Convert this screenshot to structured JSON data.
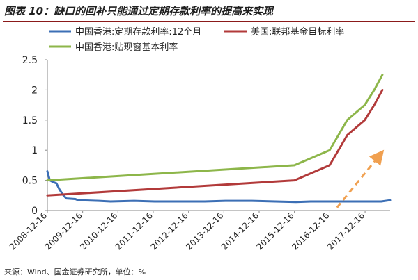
{
  "header": {
    "title": "图表 10：缺口的回补只能通过定期存款利率的提高来实现"
  },
  "footer": {
    "source": "来源：Wind、国金证券研究所，单位：%"
  },
  "chart_data": {
    "type": "line",
    "title": "图表 10：缺口的回补只能通过定期存款利率的提高来实现",
    "xlabel": "",
    "ylabel": "",
    "ylim": [
      0,
      2.5
    ],
    "yticks": [
      "0",
      "0.5",
      "1",
      "1.5",
      "2",
      "2.5"
    ],
    "xticks": [
      "2008-12-16",
      "2009-12-16",
      "2010-12-16",
      "2011-12-16",
      "2012-12-16",
      "2013-12-16",
      "2014-12-16",
      "2015-12-16",
      "2016-12-16",
      "2017-12-16"
    ],
    "xlim": [
      "2008-12-16",
      "2018-09-01"
    ],
    "grid": false,
    "legend_position": "top-left",
    "series": [
      {
        "name": "中国香港:定期存款利率:12个月",
        "color": "#3c6fb5",
        "points": [
          [
            "2008-12-16",
            0.65
          ],
          [
            "2009-01-10",
            0.5
          ],
          [
            "2009-02-15",
            0.47
          ],
          [
            "2009-03-20",
            0.45
          ],
          [
            "2009-04-20",
            0.35
          ],
          [
            "2009-06-01",
            0.25
          ],
          [
            "2009-07-01",
            0.2
          ],
          [
            "2009-10-01",
            0.19
          ],
          [
            "2009-11-01",
            0.17
          ],
          [
            "2010-06-01",
            0.16
          ],
          [
            "2010-10-01",
            0.15
          ],
          [
            "2011-06-01",
            0.16
          ],
          [
            "2012-01-01",
            0.15
          ],
          [
            "2012-10-01",
            0.15
          ],
          [
            "2013-06-01",
            0.15
          ],
          [
            "2014-01-01",
            0.16
          ],
          [
            "2014-10-01",
            0.16
          ],
          [
            "2015-06-01",
            0.15
          ],
          [
            "2016-01-01",
            0.14
          ],
          [
            "2016-06-01",
            0.15
          ],
          [
            "2017-01-01",
            0.15
          ],
          [
            "2017-12-16",
            0.15
          ],
          [
            "2018-06-01",
            0.15
          ],
          [
            "2018-09-01",
            0.17
          ]
        ]
      },
      {
        "name": "美国:联邦基金目标利率",
        "color": "#b23a3a",
        "points": [
          [
            "2008-12-16",
            0.25
          ],
          [
            "2015-12-16",
            0.5
          ],
          [
            "2016-12-14",
            0.75
          ],
          [
            "2017-03-15",
            1.0
          ],
          [
            "2017-06-14",
            1.25
          ],
          [
            "2017-12-13",
            1.5
          ],
          [
            "2018-03-21",
            1.75
          ],
          [
            "2018-06-13",
            2.0
          ]
        ]
      },
      {
        "name": "中国香港:贴现窗基本利率",
        "color": "#8db64a",
        "points": [
          [
            "2008-12-16",
            0.5
          ],
          [
            "2015-12-16",
            0.75
          ],
          [
            "2016-12-14",
            1.0
          ],
          [
            "2017-03-15",
            1.25
          ],
          [
            "2017-06-14",
            1.5
          ],
          [
            "2017-12-13",
            1.75
          ],
          [
            "2018-03-21",
            2.0
          ],
          [
            "2018-06-13",
            2.25
          ]
        ]
      }
    ],
    "annotations": [
      {
        "type": "arrow",
        "style": "dashed",
        "color": "#f0a050",
        "from": [
          "2017-03-01",
          0.05
        ],
        "to": [
          "2018-06-01",
          0.95
        ]
      }
    ]
  }
}
